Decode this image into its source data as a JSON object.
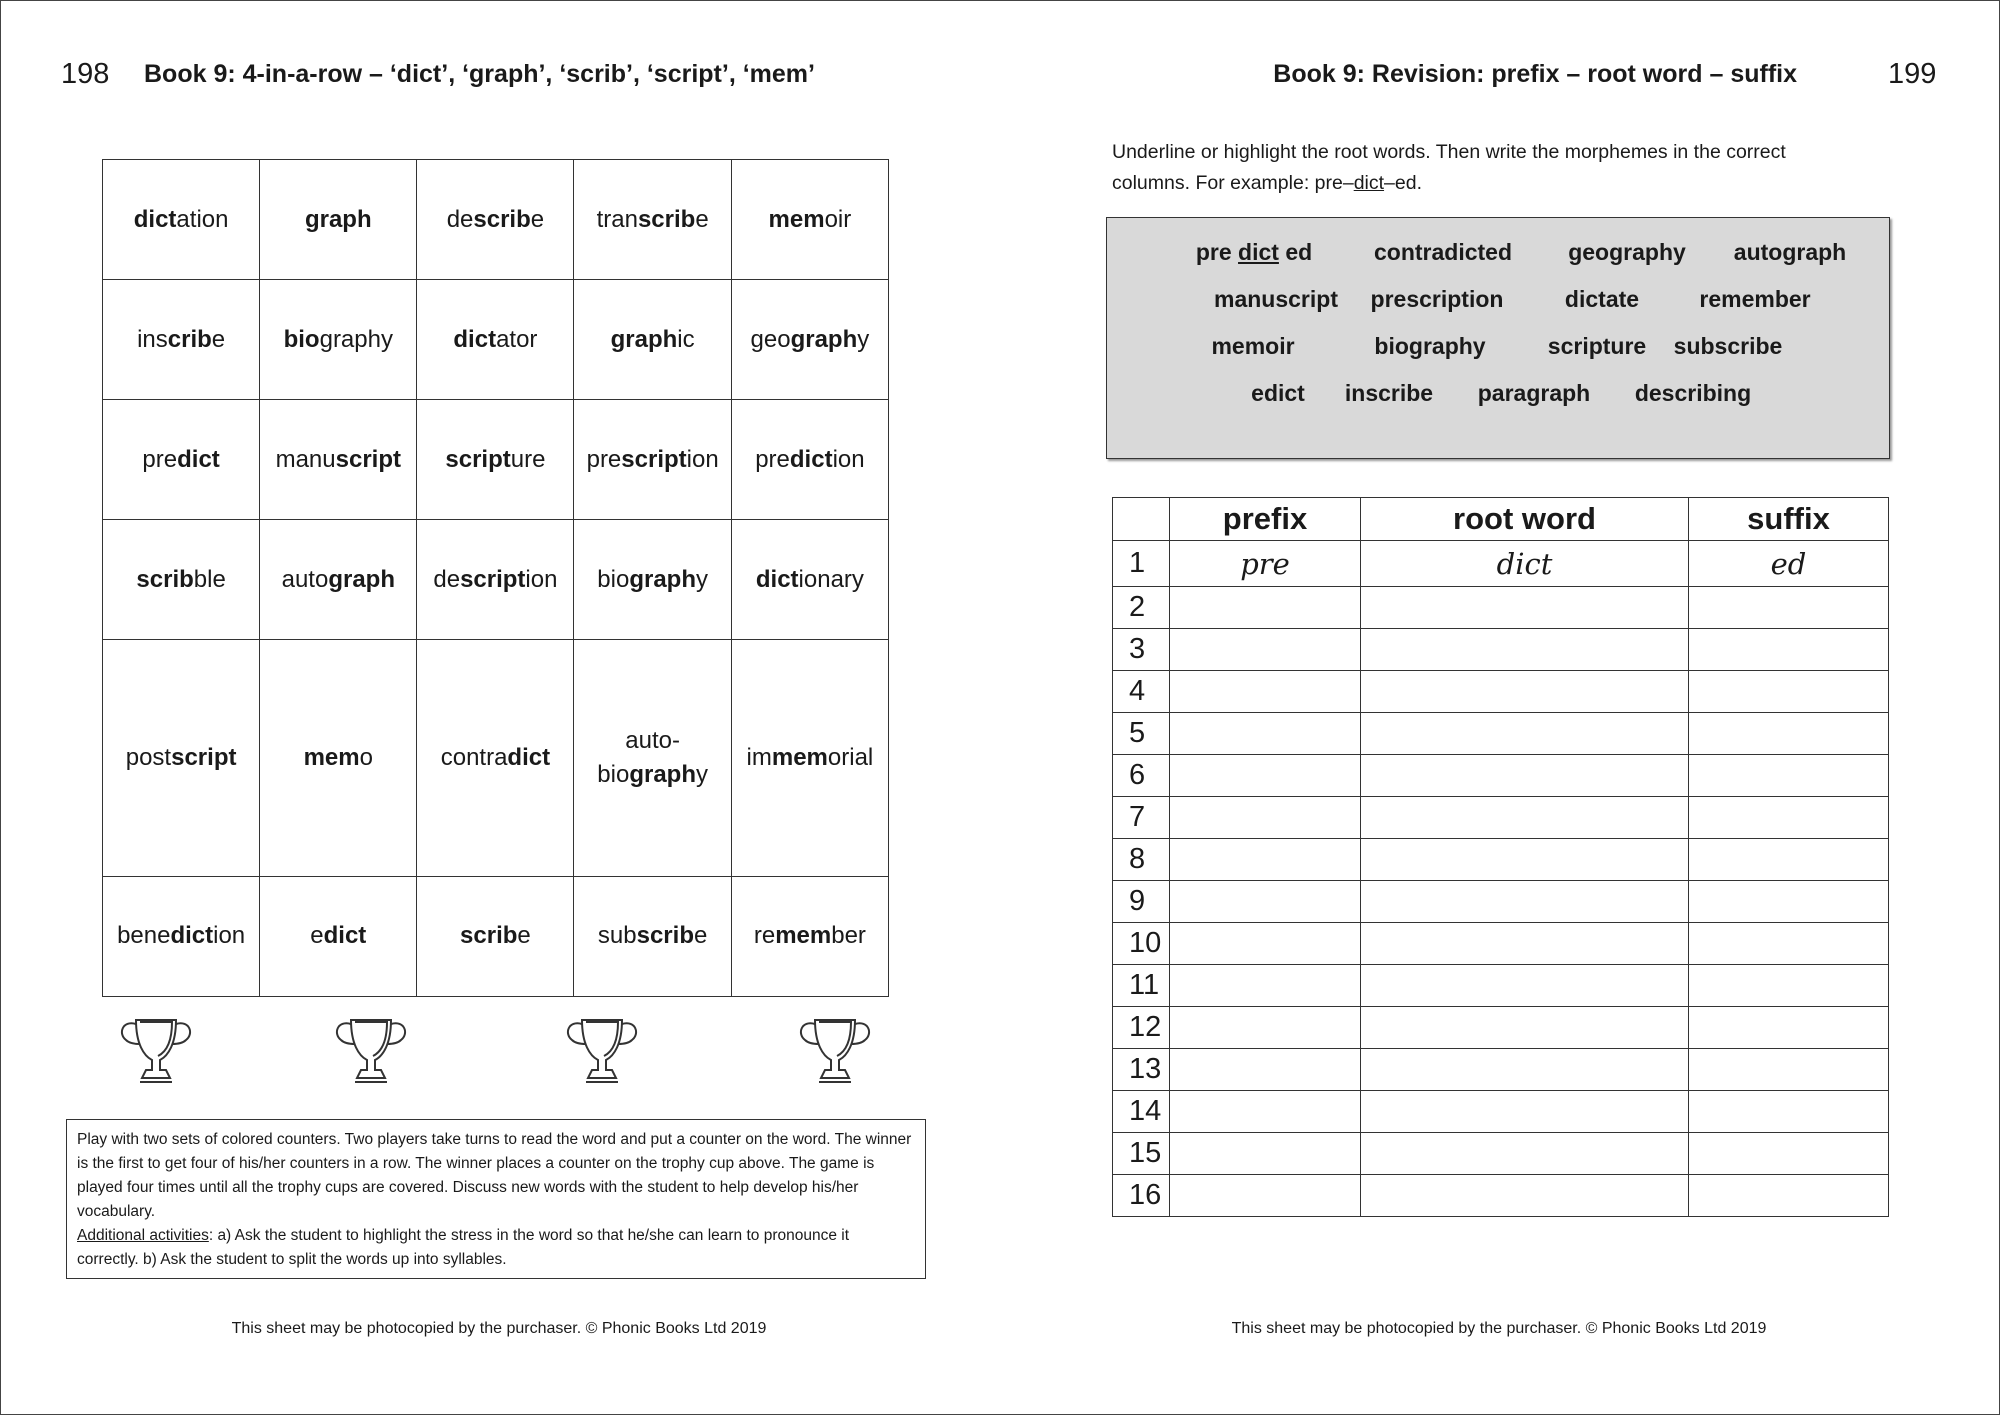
{
  "left_page": {
    "page_number": "198",
    "title": "Book 9: 4-in-a-row – ‘dict’, ‘graph’, ‘scrib’, ‘script’, ‘mem’",
    "grid": [
      [
        [
          [
            "dict",
            1
          ],
          [
            "ation",
            0
          ]
        ],
        [
          [
            "graph",
            1
          ]
        ],
        [
          [
            "de",
            0
          ],
          [
            "scrib",
            1
          ],
          [
            "e",
            0
          ]
        ],
        [
          [
            "tran",
            0
          ],
          [
            "scrib",
            1
          ],
          [
            "e",
            0
          ]
        ],
        [
          [
            "mem",
            1
          ],
          [
            "oir",
            0
          ]
        ]
      ],
      [
        [
          [
            "ins",
            0
          ],
          [
            "crib",
            1
          ],
          [
            "e",
            0
          ]
        ],
        [
          [
            "bio",
            1
          ],
          [
            "graphy",
            0
          ]
        ],
        [
          [
            "dict",
            1
          ],
          [
            "ator",
            0
          ]
        ],
        [
          [
            "graph",
            1
          ],
          [
            "ic",
            0
          ]
        ],
        [
          [
            "geo",
            0
          ],
          [
            "graph",
            1
          ],
          [
            "y",
            0
          ]
        ]
      ],
      [
        [
          [
            "pre",
            0
          ],
          [
            "dict",
            1
          ]
        ],
        [
          [
            "manu",
            0
          ],
          [
            "script",
            1
          ]
        ],
        [
          [
            "script",
            1
          ],
          [
            "ure",
            0
          ]
        ],
        [
          [
            "pre",
            0
          ],
          [
            "script",
            1
          ],
          [
            "ion",
            0
          ]
        ],
        [
          [
            "pre",
            0
          ],
          [
            "dict",
            1
          ],
          [
            "ion",
            0
          ]
        ]
      ],
      [
        [
          [
            "scrib",
            1
          ],
          [
            "ble",
            0
          ]
        ],
        [
          [
            "auto",
            0
          ],
          [
            "graph",
            1
          ]
        ],
        [
          [
            "de",
            0
          ],
          [
            "script",
            1
          ],
          [
            "ion",
            0
          ]
        ],
        [
          [
            "bio",
            0
          ],
          [
            "graph",
            1
          ],
          [
            "y",
            0
          ]
        ],
        [
          [
            "dict",
            1
          ],
          [
            "ionary",
            0
          ]
        ]
      ],
      [
        [
          [
            "post",
            0
          ],
          [
            "script",
            1
          ]
        ],
        [
          [
            "mem",
            1
          ],
          [
            "o",
            0
          ]
        ],
        [
          [
            "contra",
            0
          ],
          [
            "dict",
            1
          ]
        ],
        [
          [
            "auto-\nbio",
            0
          ],
          [
            "graph",
            1
          ],
          [
            "y",
            0
          ]
        ],
        [
          [
            "im",
            0
          ],
          [
            "mem",
            1
          ],
          [
            "orial",
            0
          ]
        ]
      ],
      [
        [
          [
            "bene",
            0
          ],
          [
            "dict",
            1
          ],
          [
            "ion",
            0
          ]
        ],
        [
          [
            "e",
            0
          ],
          [
            "dict",
            1
          ]
        ],
        [
          [
            "scrib",
            1
          ],
          [
            "e",
            0
          ]
        ],
        [
          [
            "sub",
            0
          ],
          [
            "scrib",
            1
          ],
          [
            "e",
            0
          ]
        ],
        [
          [
            "re",
            0
          ],
          [
            "mem",
            1
          ],
          [
            "ber",
            0
          ]
        ]
      ]
    ],
    "trophy_count": 4,
    "instructions": {
      "text": "Play with two sets of colored counters.  Two players take turns to read the word and put a counter on the word.  The winner is the first to get four of his/her counters in a row.  The winner places a counter on the trophy cup above.  The game is played four times until all the trophy cups are covered.  Discuss new words with the student to help develop his/her vocabulary.",
      "additional_label": "Additional activities",
      "additional_text": ":  a) Ask the student to highlight the stress in the word so that he/she can learn to pronounce it correctly.  b) Ask the student to split the words up into syllables."
    },
    "footer": "This sheet may be photocopied by the purchaser.  © Phonic Books Ltd 2019"
  },
  "right_page": {
    "page_number": "199",
    "title": "Book 9: Revision: prefix – root word – suffix",
    "instruction_pre": "Underline or highlight the root words.  Then write the morphemes in the correct columns.  For example: pre–",
    "instruction_root": "dict",
    "instruction_post": "–ed.",
    "word_bank_example": {
      "prefix": "pre",
      "root": "dict",
      "suffix": "ed"
    },
    "word_bank": [
      [
        "contradicted",
        "geography",
        "autograph"
      ],
      [
        "manuscript",
        "prescription",
        "dictate",
        "remember"
      ],
      [
        "memoir",
        "biography",
        "scripture",
        "subscribe"
      ],
      [
        "edict",
        "inscribe",
        "paragraph",
        "describing"
      ]
    ],
    "table": {
      "headers": [
        "prefix",
        "root word",
        "suffix"
      ],
      "row_numbers": [
        "1",
        "2",
        "3",
        "4",
        "5",
        "6",
        "7",
        "8",
        "9",
        "10",
        "11",
        "12",
        "13",
        "14",
        "15",
        "16"
      ],
      "example_row": [
        "pre",
        "dict",
        "ed"
      ]
    },
    "footer": "This sheet may be photocopied by the purchaser.  © Phonic Books Ltd 2019"
  },
  "colors": {
    "word_bank_bg": "#d9d9d9",
    "border": "#333333"
  }
}
